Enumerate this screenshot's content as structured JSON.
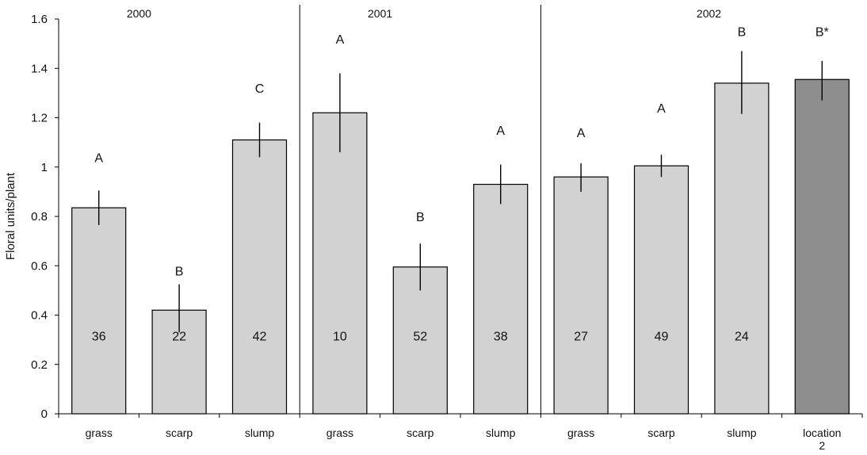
{
  "chart_data": {
    "type": "bar",
    "ylabel": "Floral units/plant",
    "ylim": [
      0,
      1.6
    ],
    "yticks": [
      "0",
      "0.2",
      "0.4",
      "0.6",
      "0.8",
      "1",
      "1.2",
      "1.4",
      "1.6"
    ],
    "grid": false,
    "groups": [
      {
        "year": "2000",
        "start": 0,
        "count": 3
      },
      {
        "year": "2001",
        "start": 3,
        "count": 3
      },
      {
        "year": "2002",
        "start": 6,
        "count": 4
      }
    ],
    "bars": [
      {
        "category": "grass",
        "value": 0.835,
        "err_low": 0.765,
        "err_high": 0.905,
        "letter": "A",
        "letter_value": 1.04,
        "n": "36",
        "color": "#d2d2d2"
      },
      {
        "category": "scarp",
        "value": 0.42,
        "err_low": 0.33,
        "err_high": 0.525,
        "letter": "B",
        "letter_value": 0.58,
        "n": "22",
        "color": "#d2d2d2"
      },
      {
        "category": "slump",
        "value": 1.11,
        "err_low": 1.04,
        "err_high": 1.18,
        "letter": "C",
        "letter_value": 1.32,
        "n": "42",
        "color": "#d2d2d2"
      },
      {
        "category": "grass",
        "value": 1.22,
        "err_low": 1.06,
        "err_high": 1.38,
        "letter": "A",
        "letter_value": 1.52,
        "n": "10",
        "color": "#d2d2d2"
      },
      {
        "category": "scarp",
        "value": 0.595,
        "err_low": 0.5,
        "err_high": 0.69,
        "letter": "B",
        "letter_value": 0.8,
        "n": "52",
        "color": "#d2d2d2"
      },
      {
        "category": "slump",
        "value": 0.93,
        "err_low": 0.85,
        "err_high": 1.01,
        "letter": "A",
        "letter_value": 1.15,
        "n": "38",
        "color": "#d2d2d2"
      },
      {
        "category": "grass",
        "value": 0.96,
        "err_low": 0.9,
        "err_high": 1.015,
        "letter": "A",
        "letter_value": 1.14,
        "n": "27",
        "color": "#d2d2d2"
      },
      {
        "category": "scarp",
        "value": 1.005,
        "err_low": 0.96,
        "err_high": 1.05,
        "letter": "A",
        "letter_value": 1.24,
        "n": "49",
        "color": "#d2d2d2"
      },
      {
        "category": "slump",
        "value": 1.34,
        "err_low": 1.215,
        "err_high": 1.47,
        "letter": "B",
        "letter_value": 1.55,
        "n": "24",
        "color": "#d2d2d2"
      },
      {
        "category": "location 2",
        "value": 1.355,
        "err_low": 1.27,
        "err_high": 1.43,
        "letter": "B*",
        "letter_value": 1.55,
        "n": "",
        "color": "#8e8e8e"
      }
    ]
  }
}
